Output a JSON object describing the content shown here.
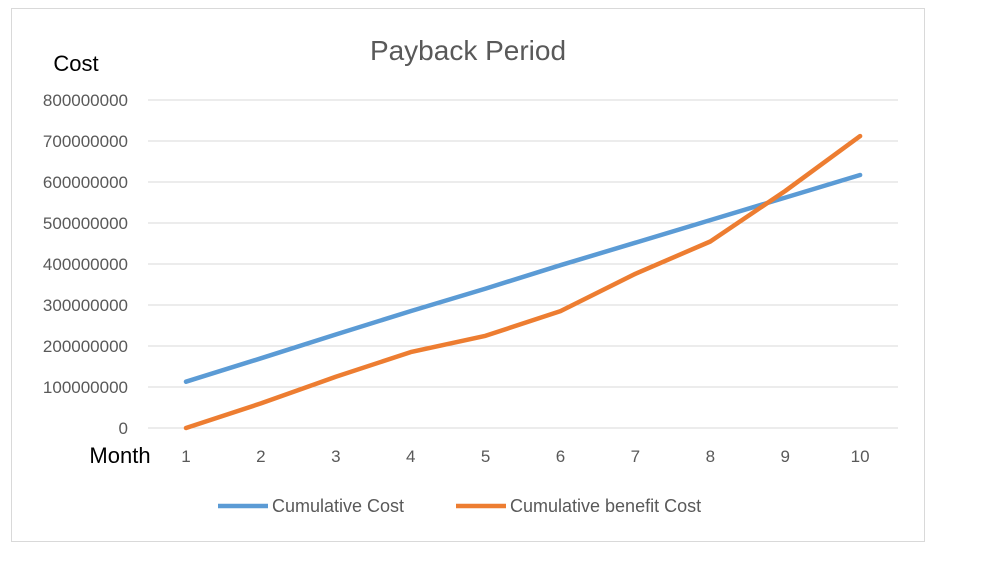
{
  "chart_data": {
    "type": "line",
    "title": "Payback Period",
    "ylabel": "Cost",
    "xlabel": "Month",
    "categories": [
      "1",
      "2",
      "3",
      "4",
      "5",
      "6",
      "7",
      "8",
      "9",
      "10"
    ],
    "ylim": [
      0,
      800000000
    ],
    "yticks": [
      "0",
      "100000000",
      "200000000",
      "300000000",
      "400000000",
      "500000000",
      "600000000",
      "700000000",
      "800000000"
    ],
    "grid": true,
    "legend_position": "bottom",
    "series": [
      {
        "name": "Cumulative Cost",
        "color": "#5B9BD5",
        "values": [
          113000000,
          170000000,
          228000000,
          285000000,
          340000000,
          397000000,
          452000000,
          507000000,
          562000000,
          617000000
        ]
      },
      {
        "name": "Cumulative benefit Cost",
        "color": "#ED7D31",
        "values": [
          0,
          60000000,
          125000000,
          185000000,
          225000000,
          285000000,
          376000000,
          455000000,
          578000000,
          712000000
        ]
      }
    ]
  }
}
